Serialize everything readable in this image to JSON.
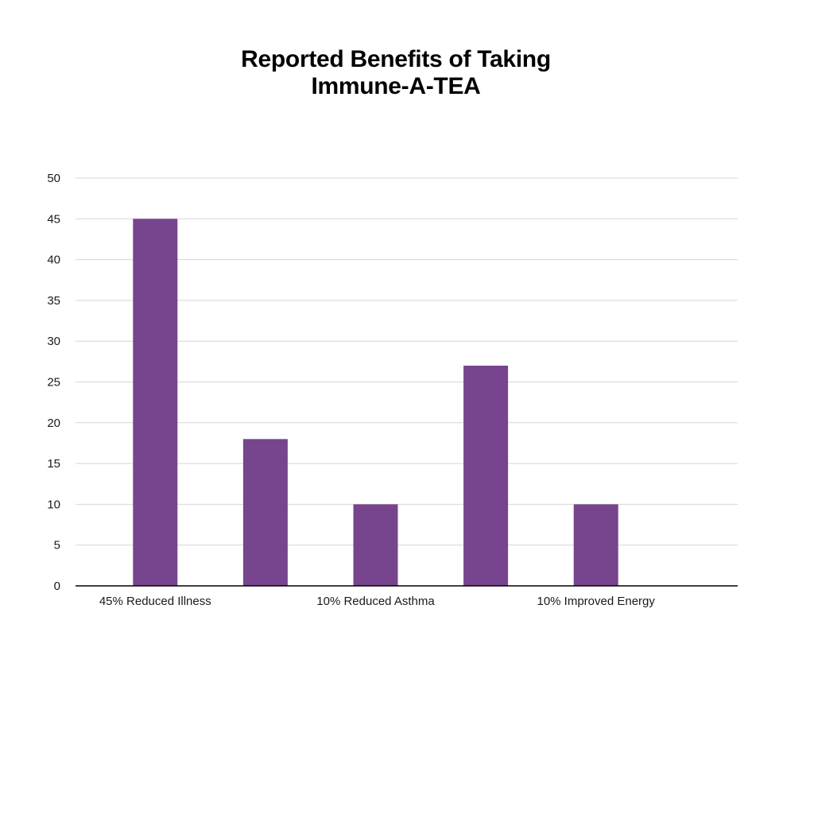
{
  "chart_data": {
    "type": "bar",
    "title_lines": [
      "Reported Benefits of Taking",
      "Immune-A-TEA"
    ],
    "categories": [
      "45% Reduced Illness",
      "",
      "10% Reduced Asthma",
      "",
      "10% Improved Energy"
    ],
    "values": [
      45,
      18,
      10,
      27,
      10
    ],
    "ylim": [
      0,
      50
    ],
    "yticks": [
      0,
      5,
      10,
      15,
      20,
      25,
      30,
      35,
      40,
      45,
      50
    ],
    "grid": true,
    "bar_color": "#77448e",
    "grid_color": "#d6d6d6",
    "axis_color": "#000000"
  }
}
